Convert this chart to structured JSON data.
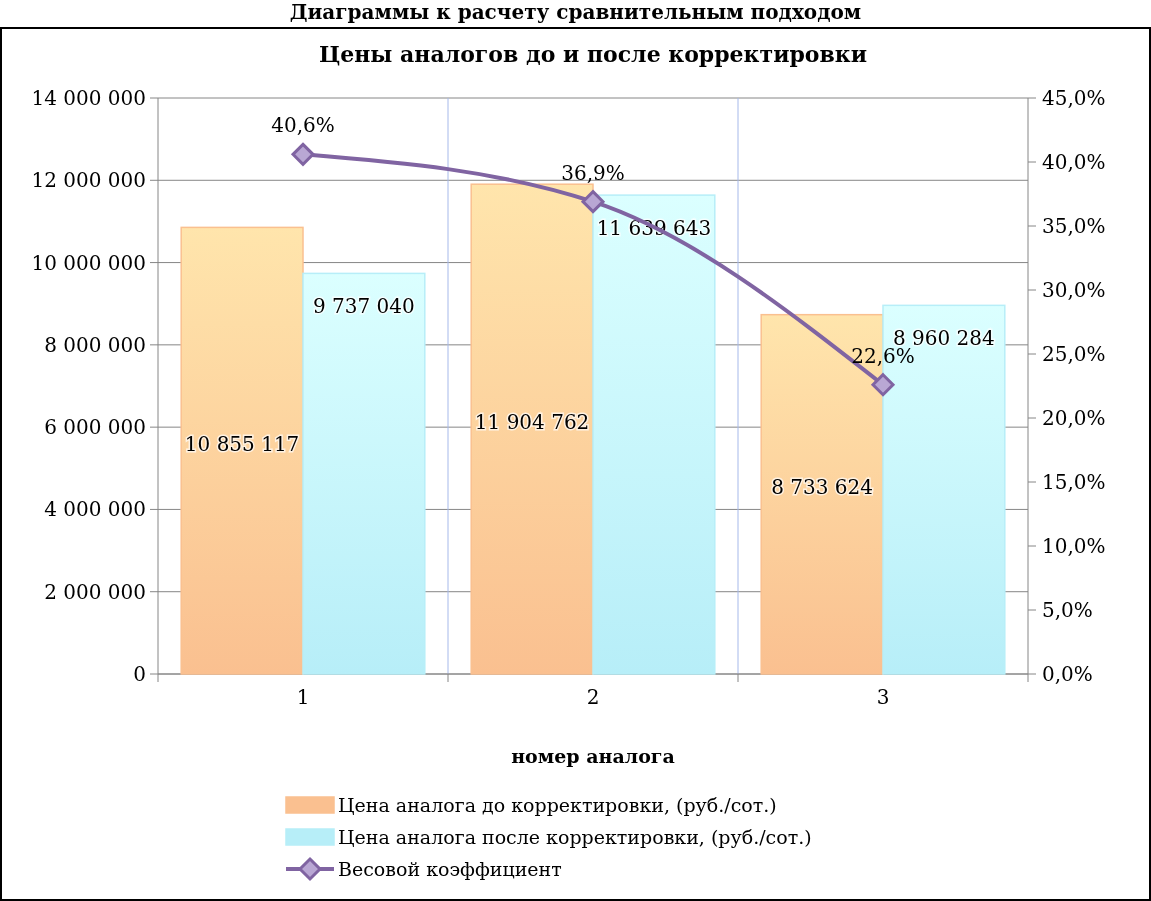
{
  "chart_data": {
    "type": "bar",
    "title": "Цены аналогов до и после корректировки",
    "xlabel": "номер аналога",
    "annotations": [
      "Диаграммы к расчету сравнительным подходом"
    ],
    "categories": [
      "1",
      "2",
      "3"
    ],
    "series": [
      {
        "name": "Цена аналога до корректировки, (руб./сот.)",
        "color": "#fac090",
        "values": [
          10855117,
          11904762,
          8733624
        ],
        "value_labels": [
          "10 855 117",
          "11 904 762",
          "8 733 624"
        ]
      },
      {
        "name": "Цена аналога после корректировки, (руб./сот.)",
        "color": "#b7eef8",
        "values": [
          9737040,
          11639643,
          8960284
        ],
        "value_labels": [
          "9 737 040",
          "11 639 643",
          "8 960 284"
        ]
      },
      {
        "name": "Весовой коэффициент",
        "type": "line",
        "axis": "y2",
        "color": "#8064a2",
        "marker": "diamond",
        "values": [
          40.6,
          36.9,
          22.6
        ],
        "value_labels": [
          "40,6%",
          "36,9%",
          "22,6%"
        ]
      }
    ],
    "ylim": [
      0,
      14000000
    ],
    "yticks": [
      {
        "value": 0,
        "label": "0"
      },
      {
        "value": 2000000,
        "label": "2 000 000"
      },
      {
        "value": 4000000,
        "label": "4 000 000"
      },
      {
        "value": 6000000,
        "label": "6 000 000"
      },
      {
        "value": 8000000,
        "label": "8 000 000"
      },
      {
        "value": 10000000,
        "label": "10 000 000"
      },
      {
        "value": 12000000,
        "label": "12 000 000"
      },
      {
        "value": 14000000,
        "label": "14 000 000"
      }
    ],
    "y2lim": [
      0,
      45
    ],
    "y2ticks": [
      {
        "value": 0,
        "label": "0,0%"
      },
      {
        "value": 5,
        "label": "5,0%"
      },
      {
        "value": 10,
        "label": "10,0%"
      },
      {
        "value": 15,
        "label": "15,0%"
      },
      {
        "value": 20,
        "label": "20,0%"
      },
      {
        "value": 25,
        "label": "25,0%"
      },
      {
        "value": 30,
        "label": "30,0%"
      },
      {
        "value": 35,
        "label": "35,0%"
      },
      {
        "value": 40,
        "label": "40,0%"
      },
      {
        "value": 45,
        "label": "45,0%"
      }
    ],
    "grid": true,
    "legend": "bottom"
  }
}
